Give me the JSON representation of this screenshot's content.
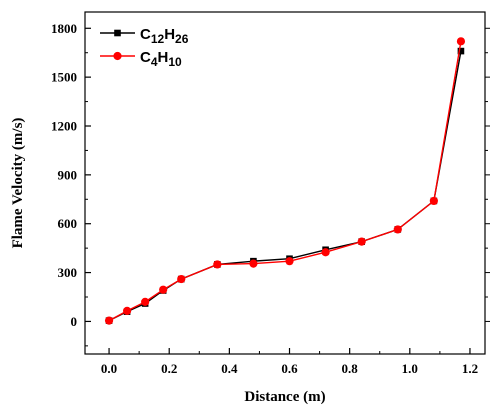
{
  "chart_data": {
    "type": "line",
    "xlabel": "Distance (m)",
    "ylabel": "Flame Velocity (m/s)",
    "xlim": [
      -0.08,
      1.25
    ],
    "ylim": [
      -200,
      1900
    ],
    "xticks": [
      0.0,
      0.2,
      0.4,
      0.6,
      0.8,
      1.0,
      1.2
    ],
    "xtick_labels": [
      "0.0",
      "0.2",
      "0.4",
      "0.6",
      "0.8",
      "1.0",
      "1.2"
    ],
    "yticks": [
      0,
      300,
      600,
      900,
      1200,
      1500,
      1800
    ],
    "ytick_labels": [
      "0",
      "300",
      "600",
      "900",
      "1200",
      "1500",
      "1800"
    ],
    "legend_position": "top-left",
    "grid": false,
    "series": [
      {
        "name_main": "C",
        "name_parts": [
          {
            "text": "C",
            "sub": false
          },
          {
            "text": "12",
            "sub": true
          },
          {
            "text": "H",
            "sub": false
          },
          {
            "text": "26",
            "sub": true
          }
        ],
        "color": "#000000",
        "marker": "square",
        "x": [
          0.0,
          0.06,
          0.12,
          0.18,
          0.24,
          0.36,
          0.48,
          0.6,
          0.72,
          0.84,
          0.96,
          1.08,
          1.17
        ],
        "y": [
          5,
          60,
          110,
          190,
          260,
          350,
          370,
          385,
          440,
          490,
          565,
          740,
          1660
        ]
      },
      {
        "name_parts": [
          {
            "text": "C",
            "sub": false
          },
          {
            "text": "4",
            "sub": true
          },
          {
            "text": "H",
            "sub": false
          },
          {
            "text": "10",
            "sub": true
          }
        ],
        "color": "#ff0000",
        "marker": "circle",
        "x": [
          0.0,
          0.06,
          0.12,
          0.18,
          0.24,
          0.36,
          0.48,
          0.6,
          0.72,
          0.84,
          0.96,
          1.08,
          1.17
        ],
        "y": [
          5,
          65,
          120,
          195,
          260,
          350,
          355,
          370,
          425,
          490,
          565,
          740,
          1720
        ]
      }
    ]
  }
}
